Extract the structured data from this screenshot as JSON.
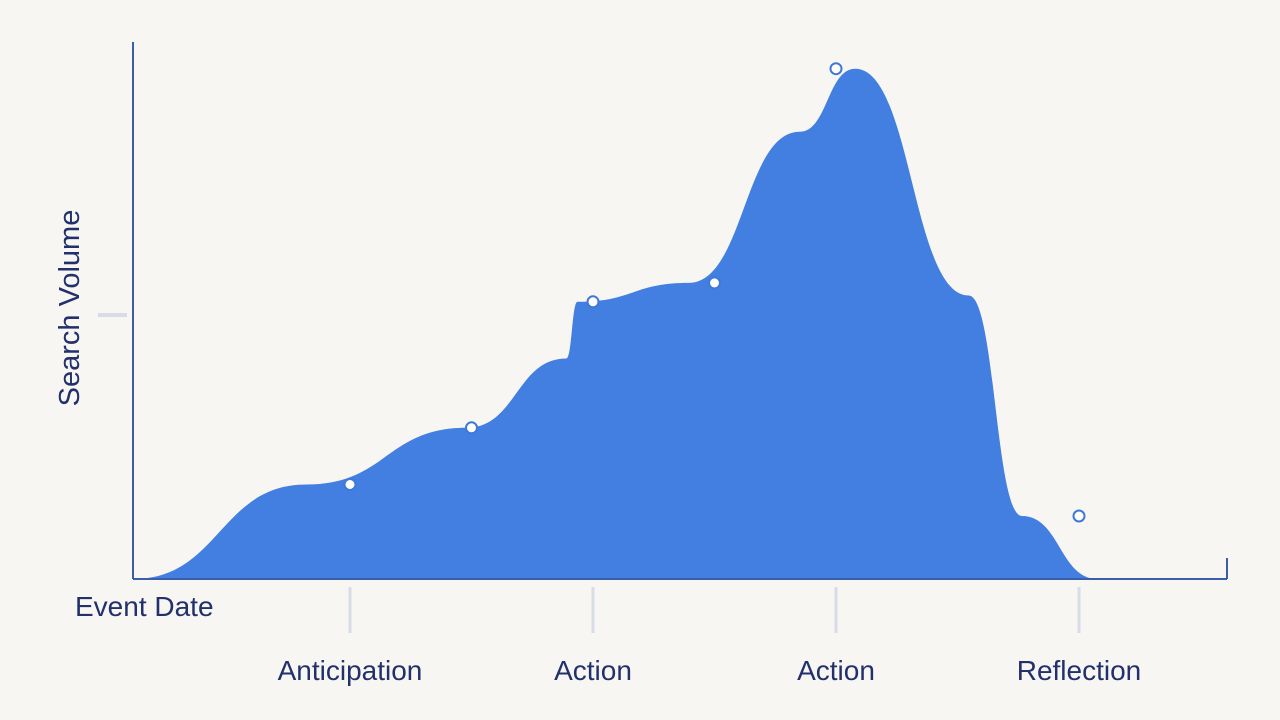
{
  "chart_data": {
    "type": "area",
    "ylabel": "Search Volume",
    "xlabel": "Event Date",
    "categories": [
      "Anticipation",
      "Action",
      "Action",
      "Reflection"
    ],
    "y_ticks": 1,
    "grid": false,
    "legend": "none",
    "colors": {
      "area": "#437fe0",
      "axis": "#3a5ea8",
      "text": "#22306b",
      "marker_fill": "#ffffff"
    },
    "points": [
      {
        "x": 0.0,
        "y": 0
      },
      {
        "x": 0.78,
        "y": 15
      },
      {
        "x": 1.5,
        "y": 24
      },
      {
        "x": 1.95,
        "y": 35
      },
      {
        "x": 2.0,
        "y": 44
      },
      {
        "x": 2.5,
        "y": 47
      },
      {
        "x": 3.0,
        "y": 71
      },
      {
        "x": 3.25,
        "y": 81
      },
      {
        "x": 3.76,
        "y": 45
      },
      {
        "x": 4.0,
        "y": 10
      },
      {
        "x": 4.34,
        "y": 0
      }
    ],
    "markers": [
      {
        "x": 0.0,
        "y": 15
      },
      {
        "x": 0.5,
        "y": 24
      },
      {
        "x": 1.0,
        "y": 44
      },
      {
        "x": 1.5,
        "y": 47
      },
      {
        "x": 2.0,
        "y": 81
      },
      {
        "x": 3.0,
        "y": 10
      }
    ]
  }
}
